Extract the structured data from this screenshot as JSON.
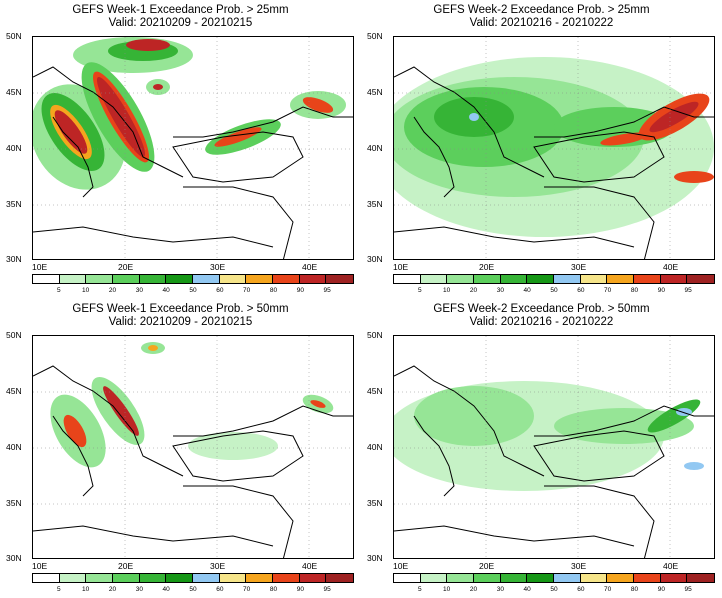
{
  "colors": {
    "c5": "#ffffff",
    "c10": "#c6f2c6",
    "c20": "#96e596",
    "c30": "#5ccf5c",
    "c40": "#36b436",
    "c50": "#169716",
    "c60": "#92c8f2",
    "c70": "#f6e58a",
    "c80": "#f5a51e",
    "c90": "#e8441a",
    "c95": "#bd2525",
    "c100": "#9e2222"
  },
  "colorbar_labels": [
    "5",
    "10",
    "20",
    "30",
    "40",
    "50",
    "60",
    "70",
    "80",
    "90",
    "95"
  ],
  "lat_labels": [
    "50N",
    "45N",
    "40N",
    "35N",
    "30N"
  ],
  "lon_labels": [
    "10E",
    "20E",
    "30E",
    "40E"
  ],
  "panels": [
    {
      "title": "GEFS Week-1 Exceedance Prob. > 25mm",
      "valid": "Valid: 20210209 - 20210215"
    },
    {
      "title": "GEFS Week-2 Exceedance Prob. > 25mm",
      "valid": "Valid: 20210216 - 20210222"
    },
    {
      "title": "GEFS Week-1 Exceedance Prob. > 50mm",
      "valid": "Valid: 20210209 - 20210215"
    },
    {
      "title": "GEFS Week-2 Exceedance Prob. > 50mm",
      "valid": "Valid: 20210216 - 20210222"
    }
  ]
}
